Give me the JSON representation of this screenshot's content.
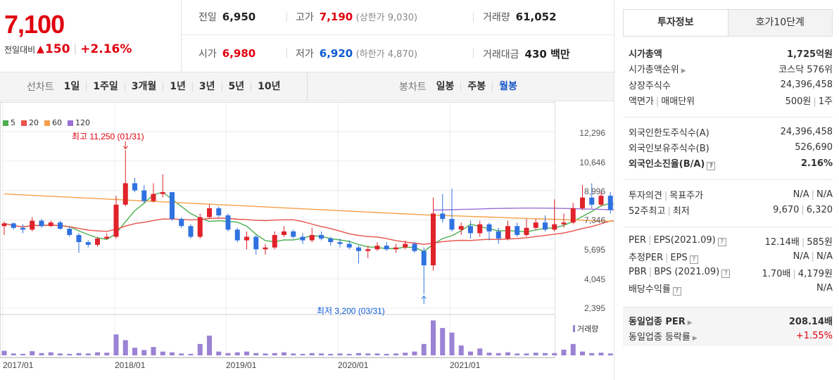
{
  "price": {
    "current": "7,100",
    "change_label": "전일대비",
    "change_arrow": "▲",
    "change_value": "150",
    "change_percent": "+2.16%"
  },
  "quote": {
    "prev_close_label": "전일",
    "prev_close": "6,950",
    "high_label": "고가",
    "high": "7,190",
    "upper_limit_label": "(상한가",
    "upper_limit": "9,030)",
    "volume_label": "거래량",
    "volume": "61,052",
    "open_label": "시가",
    "open": "6,980",
    "low_label": "저가",
    "low": "6,920",
    "lower_limit_label": "(하한가",
    "lower_limit": "4,870)",
    "value_label": "거래대금",
    "value": "430 백만"
  },
  "tabs": {
    "line_title": "선차트",
    "line_items": [
      "1일",
      "1주일",
      "3개월",
      "1년",
      "3년",
      "5년",
      "10년"
    ],
    "candle_title": "봉차트",
    "candle_items": [
      "일봉",
      "주봉",
      "월봉"
    ],
    "candle_active": "월봉"
  },
  "chart_data": {
    "type": "candlestick",
    "legend": [
      {
        "name": "5",
        "color": "#4caf50"
      },
      {
        "name": "20",
        "color": "#e8524a"
      },
      {
        "name": "60",
        "color": "#f5a04a"
      },
      {
        "name": "120",
        "color": "#9c6fd6"
      }
    ],
    "y_ticks": [
      "12,296",
      "10,646",
      "8,996",
      "7,346",
      "5,695",
      "4,045",
      "2,395"
    ],
    "y_range": [
      2395,
      12296
    ],
    "x_ticks": [
      "2017/01",
      "2018/01",
      "2019/01",
      "2020/01",
      "2021/01"
    ],
    "high_annotation": "최고 11,250 (01/31)",
    "low_annotation": "최저 3,200 (03/31)",
    "volume_label": "거래량",
    "up_color": "#e0222a",
    "down_color": "#2f72e0",
    "candles": [
      [
        7000,
        7150,
        6700,
        7250,
        6500
      ],
      [
        7150,
        6900,
        6700,
        7200,
        6800
      ],
      [
        6900,
        6800,
        6500,
        7100,
        6600
      ],
      [
        6800,
        7300,
        6800,
        7500,
        6700
      ],
      [
        7300,
        7000,
        7400,
        7400,
        6900
      ],
      [
        7000,
        7200,
        6900,
        7300,
        6950
      ],
      [
        7200,
        6850,
        7000,
        7300,
        6800
      ],
      [
        6850,
        6500,
        6900,
        6950,
        6400
      ],
      [
        6500,
        6100,
        6500,
        6600,
        5500
      ],
      [
        6100,
        5950,
        6000,
        6200,
        5800
      ],
      [
        5950,
        6300,
        5900,
        6400,
        5850
      ],
      [
        6300,
        6400,
        6300,
        6600,
        6250
      ],
      [
        6400,
        8200,
        6400,
        8700,
        6300
      ],
      [
        8200,
        9400,
        8200,
        11250,
        8100
      ],
      [
        9400,
        9000,
        9500,
        9700,
        8900
      ],
      [
        9000,
        8400,
        9300,
        9300,
        8300
      ],
      [
        8400,
        8800,
        8400,
        9400,
        8300
      ],
      [
        8800,
        8900,
        8700,
        9900,
        8600
      ],
      [
        8900,
        7400,
        8900,
        8900,
        7300
      ],
      [
        7400,
        7000,
        7500,
        7500,
        6900
      ],
      [
        7000,
        6400,
        7100,
        7100,
        6300
      ],
      [
        6400,
        7500,
        6400,
        7700,
        6300
      ],
      [
        7500,
        8000,
        7500,
        8200,
        7400
      ],
      [
        8000,
        7600,
        8000,
        8100,
        7500
      ],
      [
        7600,
        6800,
        7700,
        7700,
        6700
      ],
      [
        6800,
        6200,
        6800,
        6900,
        6100
      ],
      [
        6200,
        6400,
        6200,
        6700,
        5700
      ],
      [
        6400,
        5700,
        6500,
        6500,
        5400
      ],
      [
        5700,
        5800,
        5600,
        6000,
        5400
      ],
      [
        5800,
        6500,
        5800,
        6700,
        5700
      ],
      [
        6500,
        6700,
        6500,
        7000,
        6400
      ],
      [
        6700,
        6400,
        6700,
        6800,
        6300
      ],
      [
        6400,
        6200,
        6400,
        6600,
        6000
      ],
      [
        6200,
        6500,
        6200,
        6900,
        6100
      ],
      [
        6500,
        6300,
        6400,
        6700,
        6200
      ],
      [
        6300,
        6100,
        6400,
        6400,
        5900
      ],
      [
        6100,
        6000,
        6100,
        6300,
        5800
      ],
      [
        6000,
        5800,
        6000,
        6200,
        5700
      ],
      [
        5800,
        5600,
        5900,
        5900,
        4900
      ],
      [
        5600,
        5700,
        5600,
        5900,
        5200
      ],
      [
        5700,
        5900,
        5700,
        6100,
        5600
      ],
      [
        5900,
        5700,
        5900,
        6100,
        5600
      ],
      [
        5700,
        5800,
        5700,
        6000,
        5500
      ],
      [
        5800,
        6000,
        5800,
        6200,
        5700
      ],
      [
        6000,
        5600,
        6000,
        6100,
        5500
      ],
      [
        5600,
        4800,
        5600,
        5800,
        3200
      ],
      [
        4800,
        7700,
        4800,
        8600,
        4500
      ],
      [
        7700,
        7400,
        7800,
        8800,
        7200
      ],
      [
        7400,
        6800,
        7500,
        9100,
        6700
      ],
      [
        6800,
        7000,
        6800,
        7200,
        6500
      ],
      [
        7000,
        6600,
        7100,
        7300,
        6300
      ],
      [
        6600,
        7100,
        6600,
        7300,
        6400
      ],
      [
        7100,
        6700,
        7100,
        7200,
        6200
      ],
      [
        6700,
        6300,
        6700,
        6900,
        6000
      ],
      [
        6300,
        7000,
        6300,
        7300,
        6200
      ],
      [
        7000,
        6500,
        7000,
        7200,
        6400
      ],
      [
        6500,
        6900,
        6500,
        7400,
        6400
      ],
      [
        6900,
        7200,
        6900,
        7400,
        6800
      ],
      [
        7200,
        6800,
        7200,
        7600,
        6700
      ],
      [
        6800,
        7100,
        6800,
        8500,
        6700
      ],
      [
        7100,
        7200,
        7000,
        7700,
        6900
      ],
      [
        7200,
        8000,
        7200,
        8300,
        7100
      ],
      [
        8000,
        8600,
        8000,
        9300,
        7900
      ],
      [
        8600,
        8200,
        8600,
        9400,
        8000
      ],
      [
        8200,
        8700,
        8200,
        8900,
        8100
      ],
      [
        8700,
        7900,
        8700,
        8900,
        7700
      ],
      [
        7900,
        7500,
        7900,
        8100,
        7300
      ],
      [
        7500,
        7000,
        7500,
        7700,
        6800
      ],
      [
        7000,
        6600,
        7100,
        7300,
        6500
      ],
      [
        6600,
        7100,
        6950,
        7190,
        6920
      ]
    ],
    "volumes": [
      0.12,
      0.05,
      0.04,
      0.11,
      0.06,
      0.08,
      0.05,
      0.04,
      0.06,
      0.05,
      0.08,
      0.07,
      0.55,
      0.4,
      0.2,
      0.14,
      0.22,
      0.1,
      0.08,
      0.05,
      0.04,
      0.3,
      0.52,
      0.1,
      0.06,
      0.08,
      0.1,
      0.06,
      0.05,
      0.06,
      0.08,
      0.05,
      0.04,
      0.06,
      0.05,
      0.04,
      0.05,
      0.04,
      0.06,
      0.05,
      0.05,
      0.04,
      0.05,
      0.07,
      0.1,
      0.3,
      0.92,
      0.72,
      0.6,
      0.26,
      0.1,
      0.18,
      0.07,
      0.06,
      0.08,
      0.05,
      0.05,
      0.07,
      0.06,
      0.06,
      0.15,
      0.3,
      0.1,
      0.06,
      0.07,
      0.05,
      0.04,
      0.06,
      0.04,
      0.04
    ]
  },
  "side": {
    "tab_info": "투자정보",
    "tab_orderbook": "호가10단계",
    "market_cap_label": "시가총액",
    "market_cap": "1,725억원",
    "market_rank_label": "시가총액순위",
    "market_rank": "코스닥 576위",
    "listed_shares_label": "상장주식수",
    "listed_shares": "24,396,458",
    "face_label": "액면가",
    "unit_label": "매매단위",
    "face_value": "500원",
    "trade_unit": "1주",
    "foreign_limit_label": "외국인한도주식수(A)",
    "foreign_limit": "24,396,458",
    "foreign_hold_label": "외국인보유주식수(B)",
    "foreign_hold": "526,690",
    "foreign_rate_label": "외국인소진율(B/A)",
    "foreign_rate": "2.16%",
    "opinion_label": "투자의견",
    "target_label": "목표주가",
    "opinion": "N/A",
    "target": "N/A",
    "w52_high_label": "52주최고",
    "w52_low_label": "최저",
    "w52_high": "9,670",
    "w52_low": "6,320",
    "per_label": "PER",
    "eps_label": "EPS(2021.09)",
    "per": "12.14배",
    "eps": "585원",
    "est_per_label": "추정PER",
    "est_eps_label": "EPS",
    "est_per": "N/A",
    "est_eps": "N/A",
    "pbr_label": "PBR",
    "bps_label": "BPS (2021.09)",
    "pbr": "1.70배",
    "bps": "4,179원",
    "div_label": "배당수익률",
    "div": "N/A",
    "sector_per_label": "동일업종 PER",
    "sector_per": "208.14배",
    "sector_rate_label": "동일업종 등락률",
    "sector_rate": "+1.55%"
  }
}
